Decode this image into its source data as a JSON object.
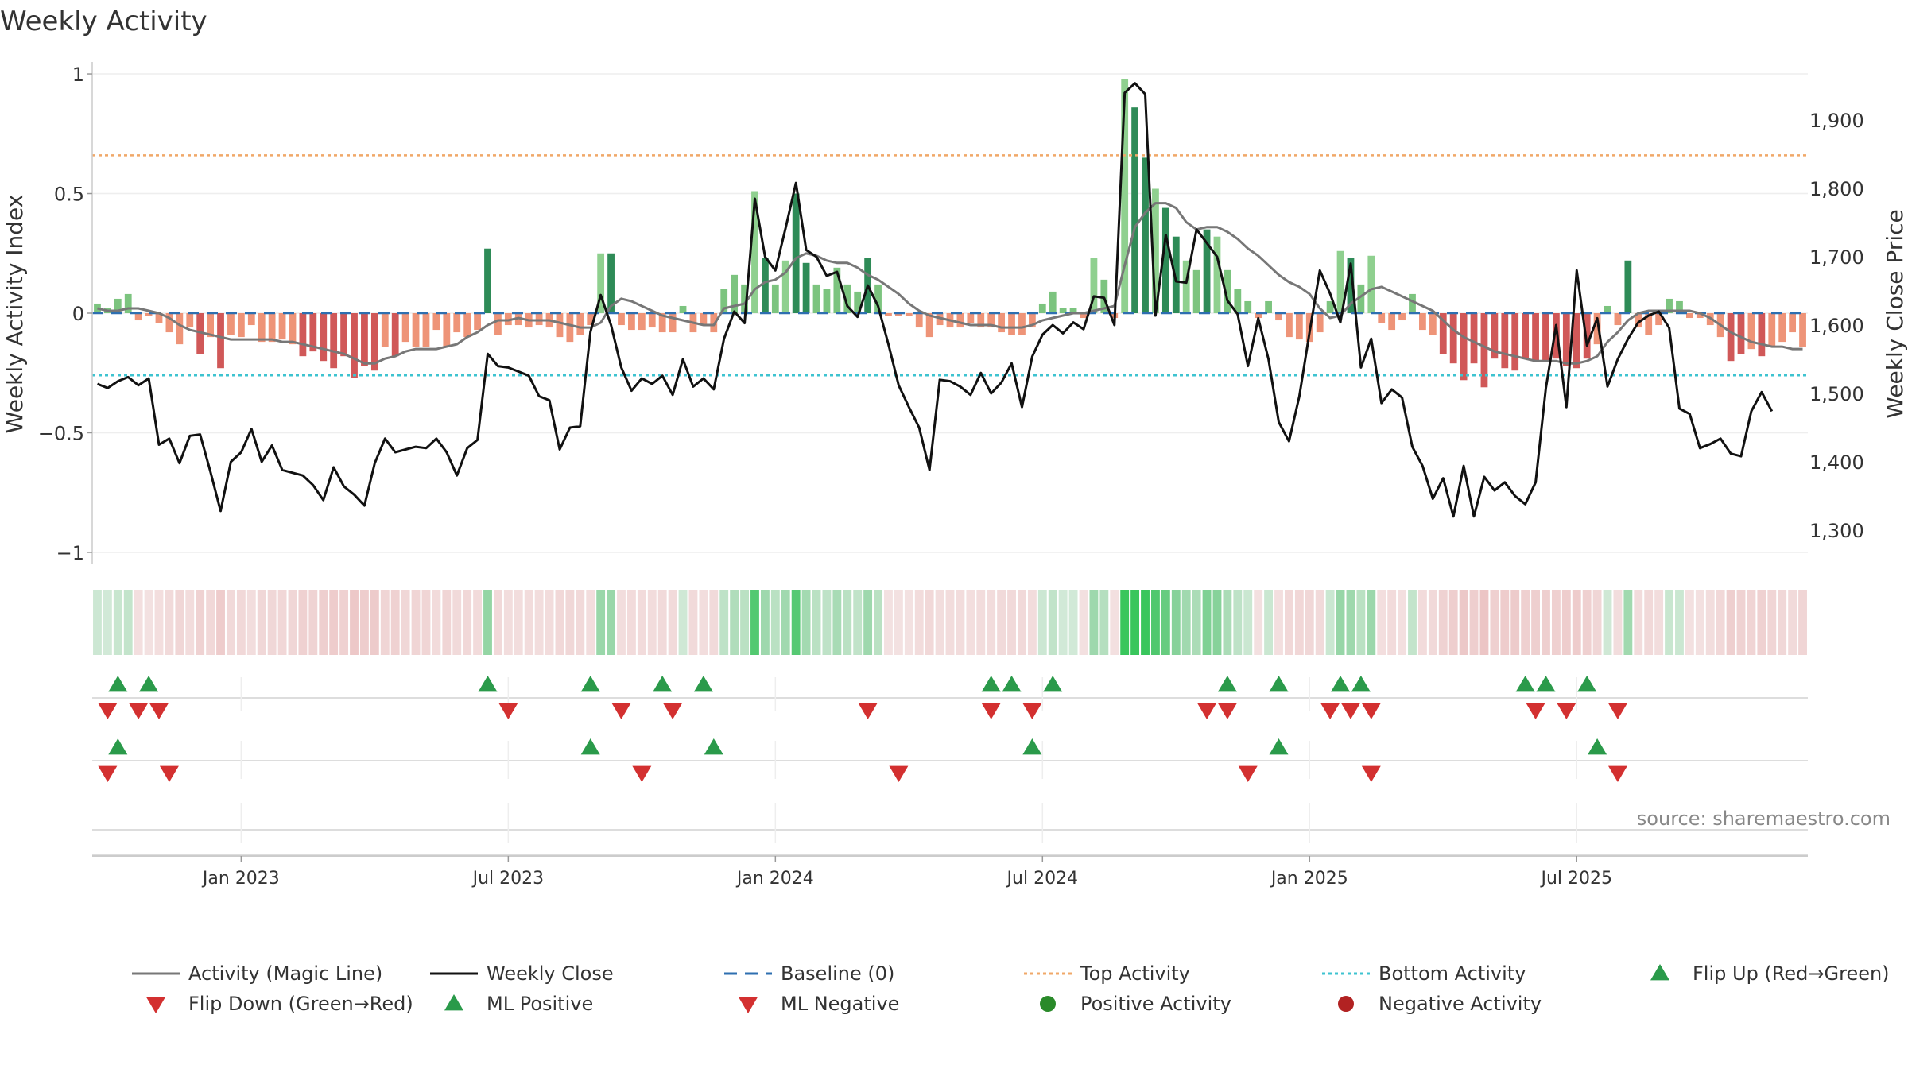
{
  "chart_data": {
    "type": "bar",
    "title": "Weekly Activity",
    "ylabel_left": "Weekly Activity Index",
    "ylabel_right": "Weekly Close Price",
    "source": "source: sharemaestro.com",
    "left_ylim": [
      -1.05,
      1.05
    ],
    "left_ticks": [
      {
        "v": 1,
        "label": "1"
      },
      {
        "v": 0.5,
        "label": "0.5"
      },
      {
        "v": 0,
        "label": "0"
      },
      {
        "v": -0.5,
        "label": "−0.5"
      },
      {
        "v": -1,
        "label": "−1"
      }
    ],
    "right_ylim": [
      1250,
      1985
    ],
    "right_ticks": [
      {
        "v": 1900,
        "label": "1,900"
      },
      {
        "v": 1800,
        "label": "1,800"
      },
      {
        "v": 1700,
        "label": "1,700"
      },
      {
        "v": 1600,
        "label": "1,600"
      },
      {
        "v": 1500,
        "label": "1,500"
      },
      {
        "v": 1400,
        "label": "1,400"
      },
      {
        "v": 1300,
        "label": "1,300"
      }
    ],
    "x_ticks": [
      {
        "week": 14,
        "label": "Jan 2023"
      },
      {
        "week": 40,
        "label": "Jul 2023"
      },
      {
        "week": 66,
        "label": "Jan 2024"
      },
      {
        "week": 92,
        "label": "Jul 2024"
      },
      {
        "week": 118,
        "label": "Jan 2025"
      },
      {
        "week": 144,
        "label": "Jul 2025"
      }
    ],
    "top_activity": 0.66,
    "bottom_activity": -0.26,
    "baseline": 0,
    "activity": [
      0.04,
      0.02,
      0.06,
      0.08,
      -0.03,
      -0.01,
      -0.04,
      -0.08,
      -0.13,
      -0.06,
      -0.17,
      -0.1,
      -0.23,
      -0.09,
      -0.1,
      -0.05,
      -0.12,
      -0.12,
      -0.11,
      -0.13,
      -0.18,
      -0.16,
      -0.2,
      -0.23,
      -0.18,
      -0.27,
      -0.22,
      -0.24,
      -0.14,
      -0.18,
      -0.12,
      -0.14,
      -0.14,
      -0.07,
      -0.14,
      -0.08,
      -0.1,
      -0.07,
      0.27,
      -0.09,
      -0.05,
      -0.05,
      -0.06,
      -0.05,
      -0.06,
      -0.1,
      -0.12,
      -0.09,
      -0.05,
      0.25,
      0.25,
      -0.05,
      -0.07,
      -0.07,
      -0.06,
      -0.08,
      -0.08,
      0.03,
      -0.08,
      -0.05,
      -0.08,
      0.1,
      0.16,
      0.12,
      0.51,
      0.23,
      0.12,
      0.22,
      0.5,
      0.21,
      0.12,
      0.1,
      0.19,
      0.12,
      0.09,
      0.23,
      0.12,
      -0.01,
      -0.01,
      -0.01,
      -0.06,
      -0.1,
      -0.05,
      -0.06,
      -0.06,
      -0.04,
      -0.06,
      -0.06,
      -0.08,
      -0.09,
      -0.09,
      -0.06,
      0.04,
      0.09,
      0.02,
      0.02,
      -0.02,
      0.23,
      0.14,
      -0.02,
      0.98,
      0.86,
      0.65,
      0.52,
      0.44,
      0.32,
      0.22,
      0.18,
      0.35,
      0.32,
      0.18,
      0.1,
      0.05,
      -0.02,
      0.05,
      -0.03,
      -0.1,
      -0.11,
      -0.12,
      -0.08,
      0.05,
      0.26,
      0.23,
      0.12,
      0.24,
      -0.04,
      -0.07,
      -0.03,
      0.08,
      -0.07,
      -0.09,
      -0.17,
      -0.21,
      -0.28,
      -0.21,
      -0.31,
      -0.19,
      -0.23,
      -0.24,
      -0.19,
      -0.2,
      -0.2,
      -0.19,
      -0.22,
      -0.23,
      -0.19,
      -0.13,
      0.03,
      -0.05,
      0.22,
      -0.06,
      -0.09,
      -0.05,
      0.06,
      0.05,
      -0.02,
      -0.02,
      -0.05,
      -0.1,
      -0.2,
      -0.17,
      -0.15,
      -0.18,
      -0.14,
      -0.12,
      -0.08,
      -0.14
    ],
    "magic_line": [
      0.02,
      0.01,
      0.01,
      0.02,
      0.02,
      0.01,
      0.0,
      -0.02,
      -0.05,
      -0.07,
      -0.08,
      -0.09,
      -0.1,
      -0.11,
      -0.11,
      -0.11,
      -0.11,
      -0.11,
      -0.12,
      -0.12,
      -0.13,
      -0.14,
      -0.15,
      -0.16,
      -0.17,
      -0.19,
      -0.21,
      -0.21,
      -0.19,
      -0.18,
      -0.16,
      -0.15,
      -0.15,
      -0.15,
      -0.14,
      -0.13,
      -0.1,
      -0.08,
      -0.05,
      -0.03,
      -0.03,
      -0.02,
      -0.03,
      -0.03,
      -0.03,
      -0.04,
      -0.05,
      -0.06,
      -0.06,
      -0.04,
      0.03,
      0.06,
      0.05,
      0.03,
      0.01,
      -0.01,
      -0.02,
      -0.03,
      -0.04,
      -0.05,
      -0.05,
      0.02,
      0.03,
      0.04,
      0.1,
      0.13,
      0.14,
      0.17,
      0.23,
      0.25,
      0.24,
      0.22,
      0.21,
      0.21,
      0.19,
      0.16,
      0.14,
      0.11,
      0.08,
      0.04,
      0.01,
      -0.01,
      -0.02,
      -0.03,
      -0.04,
      -0.05,
      -0.05,
      -0.05,
      -0.06,
      -0.06,
      -0.06,
      -0.05,
      -0.03,
      -0.02,
      -0.01,
      0.0,
      0.0,
      0.01,
      0.02,
      0.03,
      0.2,
      0.36,
      0.42,
      0.46,
      0.46,
      0.44,
      0.38,
      0.35,
      0.36,
      0.36,
      0.34,
      0.31,
      0.27,
      0.24,
      0.2,
      0.16,
      0.13,
      0.11,
      0.08,
      0.02,
      -0.02,
      -0.01,
      0.04,
      0.07,
      0.1,
      0.11,
      0.09,
      0.07,
      0.05,
      0.03,
      0.01,
      -0.03,
      -0.07,
      -0.1,
      -0.12,
      -0.14,
      -0.16,
      -0.17,
      -0.18,
      -0.19,
      -0.2,
      -0.2,
      -0.2,
      -0.21,
      -0.21,
      -0.2,
      -0.18,
      -0.12,
      -0.08,
      -0.03,
      0.0,
      0.01,
      0.01,
      0.01,
      0.01,
      0.01,
      0.0,
      -0.02,
      -0.05,
      -0.08,
      -0.1,
      -0.12,
      -0.13,
      -0.14,
      -0.14,
      -0.15,
      -0.15
    ],
    "weekly_close": [
      1514,
      1508,
      1518,
      1524,
      1512,
      1522,
      1425,
      1434,
      1398,
      1438,
      1440,
      1386,
      1328,
      1400,
      1414,
      1448,
      1400,
      1424,
      1388,
      1384,
      1380,
      1366,
      1344,
      1392,
      1364,
      1352,
      1336,
      1398,
      1434,
      1414,
      1418,
      1422,
      1420,
      1434,
      1414,
      1380,
      1420,
      1432,
      1558,
      1540,
      1538,
      1532,
      1526,
      1496,
      1490,
      1418,
      1450,
      1452,
      1590,
      1644,
      1600,
      1538,
      1504,
      1522,
      1514,
      1526,
      1498,
      1550,
      1510,
      1522,
      1506,
      1580,
      1620,
      1603,
      1785,
      1700,
      1680,
      1742,
      1808,
      1710,
      1700,
      1672,
      1678,
      1628,
      1612,
      1658,
      1628,
      1572,
      1512,
      1480,
      1450,
      1388,
      1520,
      1518,
      1510,
      1498,
      1530,
      1500,
      1516,
      1544,
      1480,
      1554,
      1586,
      1600,
      1588,
      1604,
      1594,
      1642,
      1640,
      1600,
      1940,
      1954,
      1938,
      1614,
      1732,
      1664,
      1662,
      1740,
      1720,
      1700,
      1636,
      1616,
      1540,
      1610,
      1550,
      1458,
      1430,
      1496,
      1590,
      1680,
      1646,
      1604,
      1690,
      1538,
      1580,
      1486,
      1506,
      1494,
      1422,
      1394,
      1346,
      1376,
      1320,
      1394,
      1320,
      1378,
      1358,
      1370,
      1350,
      1338,
      1370,
      1508,
      1600,
      1480,
      1680,
      1570,
      1610,
      1510,
      1550,
      1580,
      1604,
      1614,
      1620,
      1596,
      1478,
      1470,
      1420,
      1426,
      1434,
      1412,
      1408,
      1474,
      1502,
      1474
    ],
    "strip_row1_up": [
      2,
      5,
      38,
      48,
      55,
      59,
      87,
      89,
      93,
      110,
      115,
      121,
      123,
      139,
      141,
      145
    ],
    "strip_row1_down": [
      1,
      4,
      6,
      40,
      51,
      56,
      75,
      87,
      91,
      108,
      110,
      120,
      122,
      124,
      140,
      143,
      148
    ],
    "strip_row2_up": [
      2,
      48,
      60,
      91,
      115,
      146
    ],
    "strip_row2_down": [
      1,
      7,
      53,
      78,
      112,
      124,
      148
    ],
    "legend": [
      {
        "label": "Activity (Magic Line)",
        "kind": "line",
        "color": "#777777"
      },
      {
        "label": "Weekly Close",
        "kind": "line",
        "color": "#111111"
      },
      {
        "label": "Baseline (0)",
        "kind": "dash",
        "color": "#2e6fb0"
      },
      {
        "label": "Top Activity",
        "kind": "dot",
        "color": "#f0a868"
      },
      {
        "label": "Bottom Activity",
        "kind": "dot",
        "color": "#3ec3d0"
      },
      {
        "label": "Flip Up (Red→Green)",
        "kind": "up",
        "color": "#2a9a4a"
      },
      {
        "label": "Flip Down (Green→Red)",
        "kind": "down",
        "color": "#d33030"
      },
      {
        "label": "ML Positive",
        "kind": "up",
        "color": "#2a9a4a"
      },
      {
        "label": "ML Negative",
        "kind": "down",
        "color": "#d33030"
      },
      {
        "label": "Positive Activity",
        "kind": "circle",
        "color": "#2a8a2a"
      },
      {
        "label": "Negative Activity",
        "kind": "circle",
        "color": "#b22222"
      }
    ]
  }
}
